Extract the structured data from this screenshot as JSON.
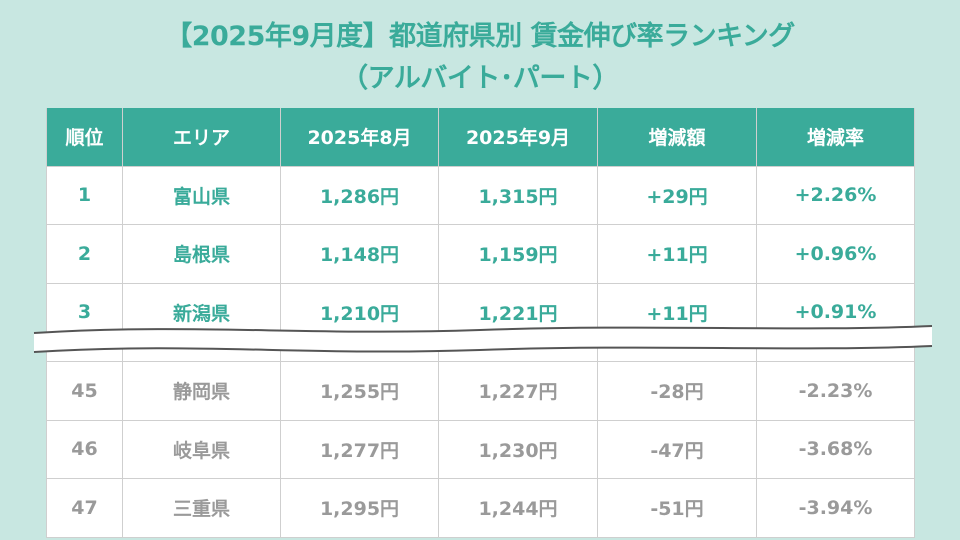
{
  "title": {
    "line1": "【2025年9月度】都道府県別 賃金伸び率ランキング",
    "line2": "（アルバイト･パート）"
  },
  "headers": [
    "順位",
    "エリア",
    "2025年8月",
    "2025年9月",
    "増減額",
    "増減率"
  ],
  "top_rows": [
    [
      "1",
      "富山県",
      "1,286円",
      "1,315円",
      "+29円",
      "+2.26%"
    ],
    [
      "2",
      "島根県",
      "1,148円",
      "1,159円",
      "+11円",
      "+0.96%"
    ],
    [
      "3",
      "新潟県",
      "1,210円",
      "1,221円",
      "+11円",
      "+0.91%"
    ]
  ],
  "bottom_rows": [
    [
      "45",
      "静岡県",
      "1,255円",
      "1,227円",
      "-28円",
      "-2.23%"
    ],
    [
      "46",
      "岐阜県",
      "1,277円",
      "1,230円",
      "-47円",
      "-3.68%"
    ],
    [
      "47",
      "三重県",
      "1,295円",
      "1,244円",
      "-51円",
      "-3.94%"
    ]
  ],
  "colors": {
    "accent": "#3aab9a",
    "background": "#c8e7e1",
    "muted": "#9a9a9a"
  }
}
